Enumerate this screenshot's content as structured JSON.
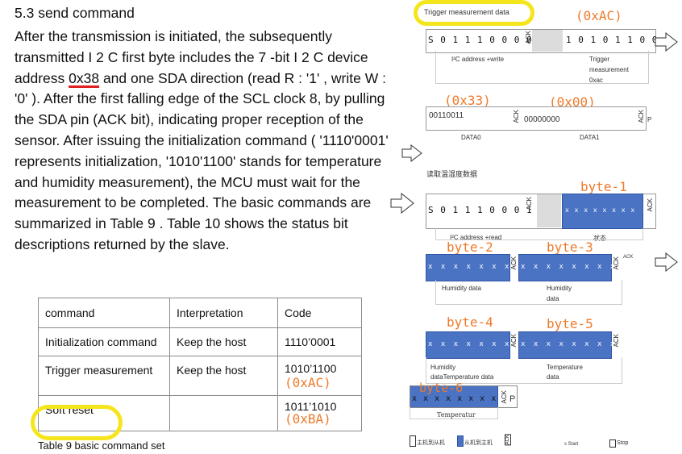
{
  "section": {
    "title": "5.3 send command",
    "p1": "After the transmission is initiated, the subsequently transmitted I 2 C first byte includes the 7 -bit I 2 C device address ",
    "addr": "0x38",
    "p2": " and one SDA direction (read R : '1' , write W : '0' ). After the first falling edge of the SCL clock 8, by pulling the SDA pin (ACK bit), indicating proper reception of the sensor. After issuing the initialization command ( '1110'0001' represents initialization, '1010'1100' stands for temperature and humidity measurement), the MCU must wait for the measurement to be completed. The basic commands are summarized in Table 9 . Table 10 shows the status bit descriptions returned by the slave."
  },
  "table": {
    "headers": [
      "command",
      "Interpretation",
      "Code"
    ],
    "rows": [
      {
        "command": "Initialization command",
        "interp": "Keep the host",
        "code": "1110’0001",
        "note": ""
      },
      {
        "command": "Trigger measurement",
        "interp": "Keep the host",
        "code": "1010’1100",
        "note": "(0xAC)"
      },
      {
        "command": "Soft reset",
        "interp": "",
        "code": "1011’1010",
        "note": "(0xBA)"
      }
    ],
    "caption": "Table 9 basic command set"
  },
  "diagram": {
    "trigger_label": "Trigger measurement data",
    "trigger_hex": "(0xAC)",
    "row1_bits": "S 0 1 1 1 0 0 0 0",
    "row1_bits2": "1 0 1 0 1 1 0 0",
    "row1_caption1": "I²C address +write",
    "row1_caption2a": "Trigger",
    "row1_caption2b": "measurement",
    "row1_caption2c": "0xac",
    "hex_33": "(0x33)",
    "hex_00": "(0x00)",
    "data0_bits": "00110011",
    "data1_bits": "00000000",
    "data0_label": "DATA0",
    "data1_label": "DATA1",
    "read_title": "读取温湿度数据",
    "byte1": "byte-1",
    "row3_bits": "S 0 1 1 1 0 0 0 1",
    "row3_caption1": "I²C address +read",
    "row3_caption2": "状态",
    "byte2": "byte-2",
    "byte3": "byte-3",
    "humidity_data": "Humidity data",
    "humidity_a": "Humidity",
    "humidity_b": "data",
    "byte4": "byte-4",
    "byte5": "byte-5",
    "hum_temp_a": "Humidity",
    "hum_temp_b": "dataTemperature data",
    "temp_a": "Temperature",
    "temp_b": "data",
    "byte6": "byte-6",
    "temperatur": "Temperatur",
    "xbits": "x x x x x x x x",
    "ack": "ACK",
    "p": "P",
    "legend_master": "主机到从机",
    "legend_slave": "从机到主机",
    "start": "s Start",
    "stop": "Stop"
  }
}
